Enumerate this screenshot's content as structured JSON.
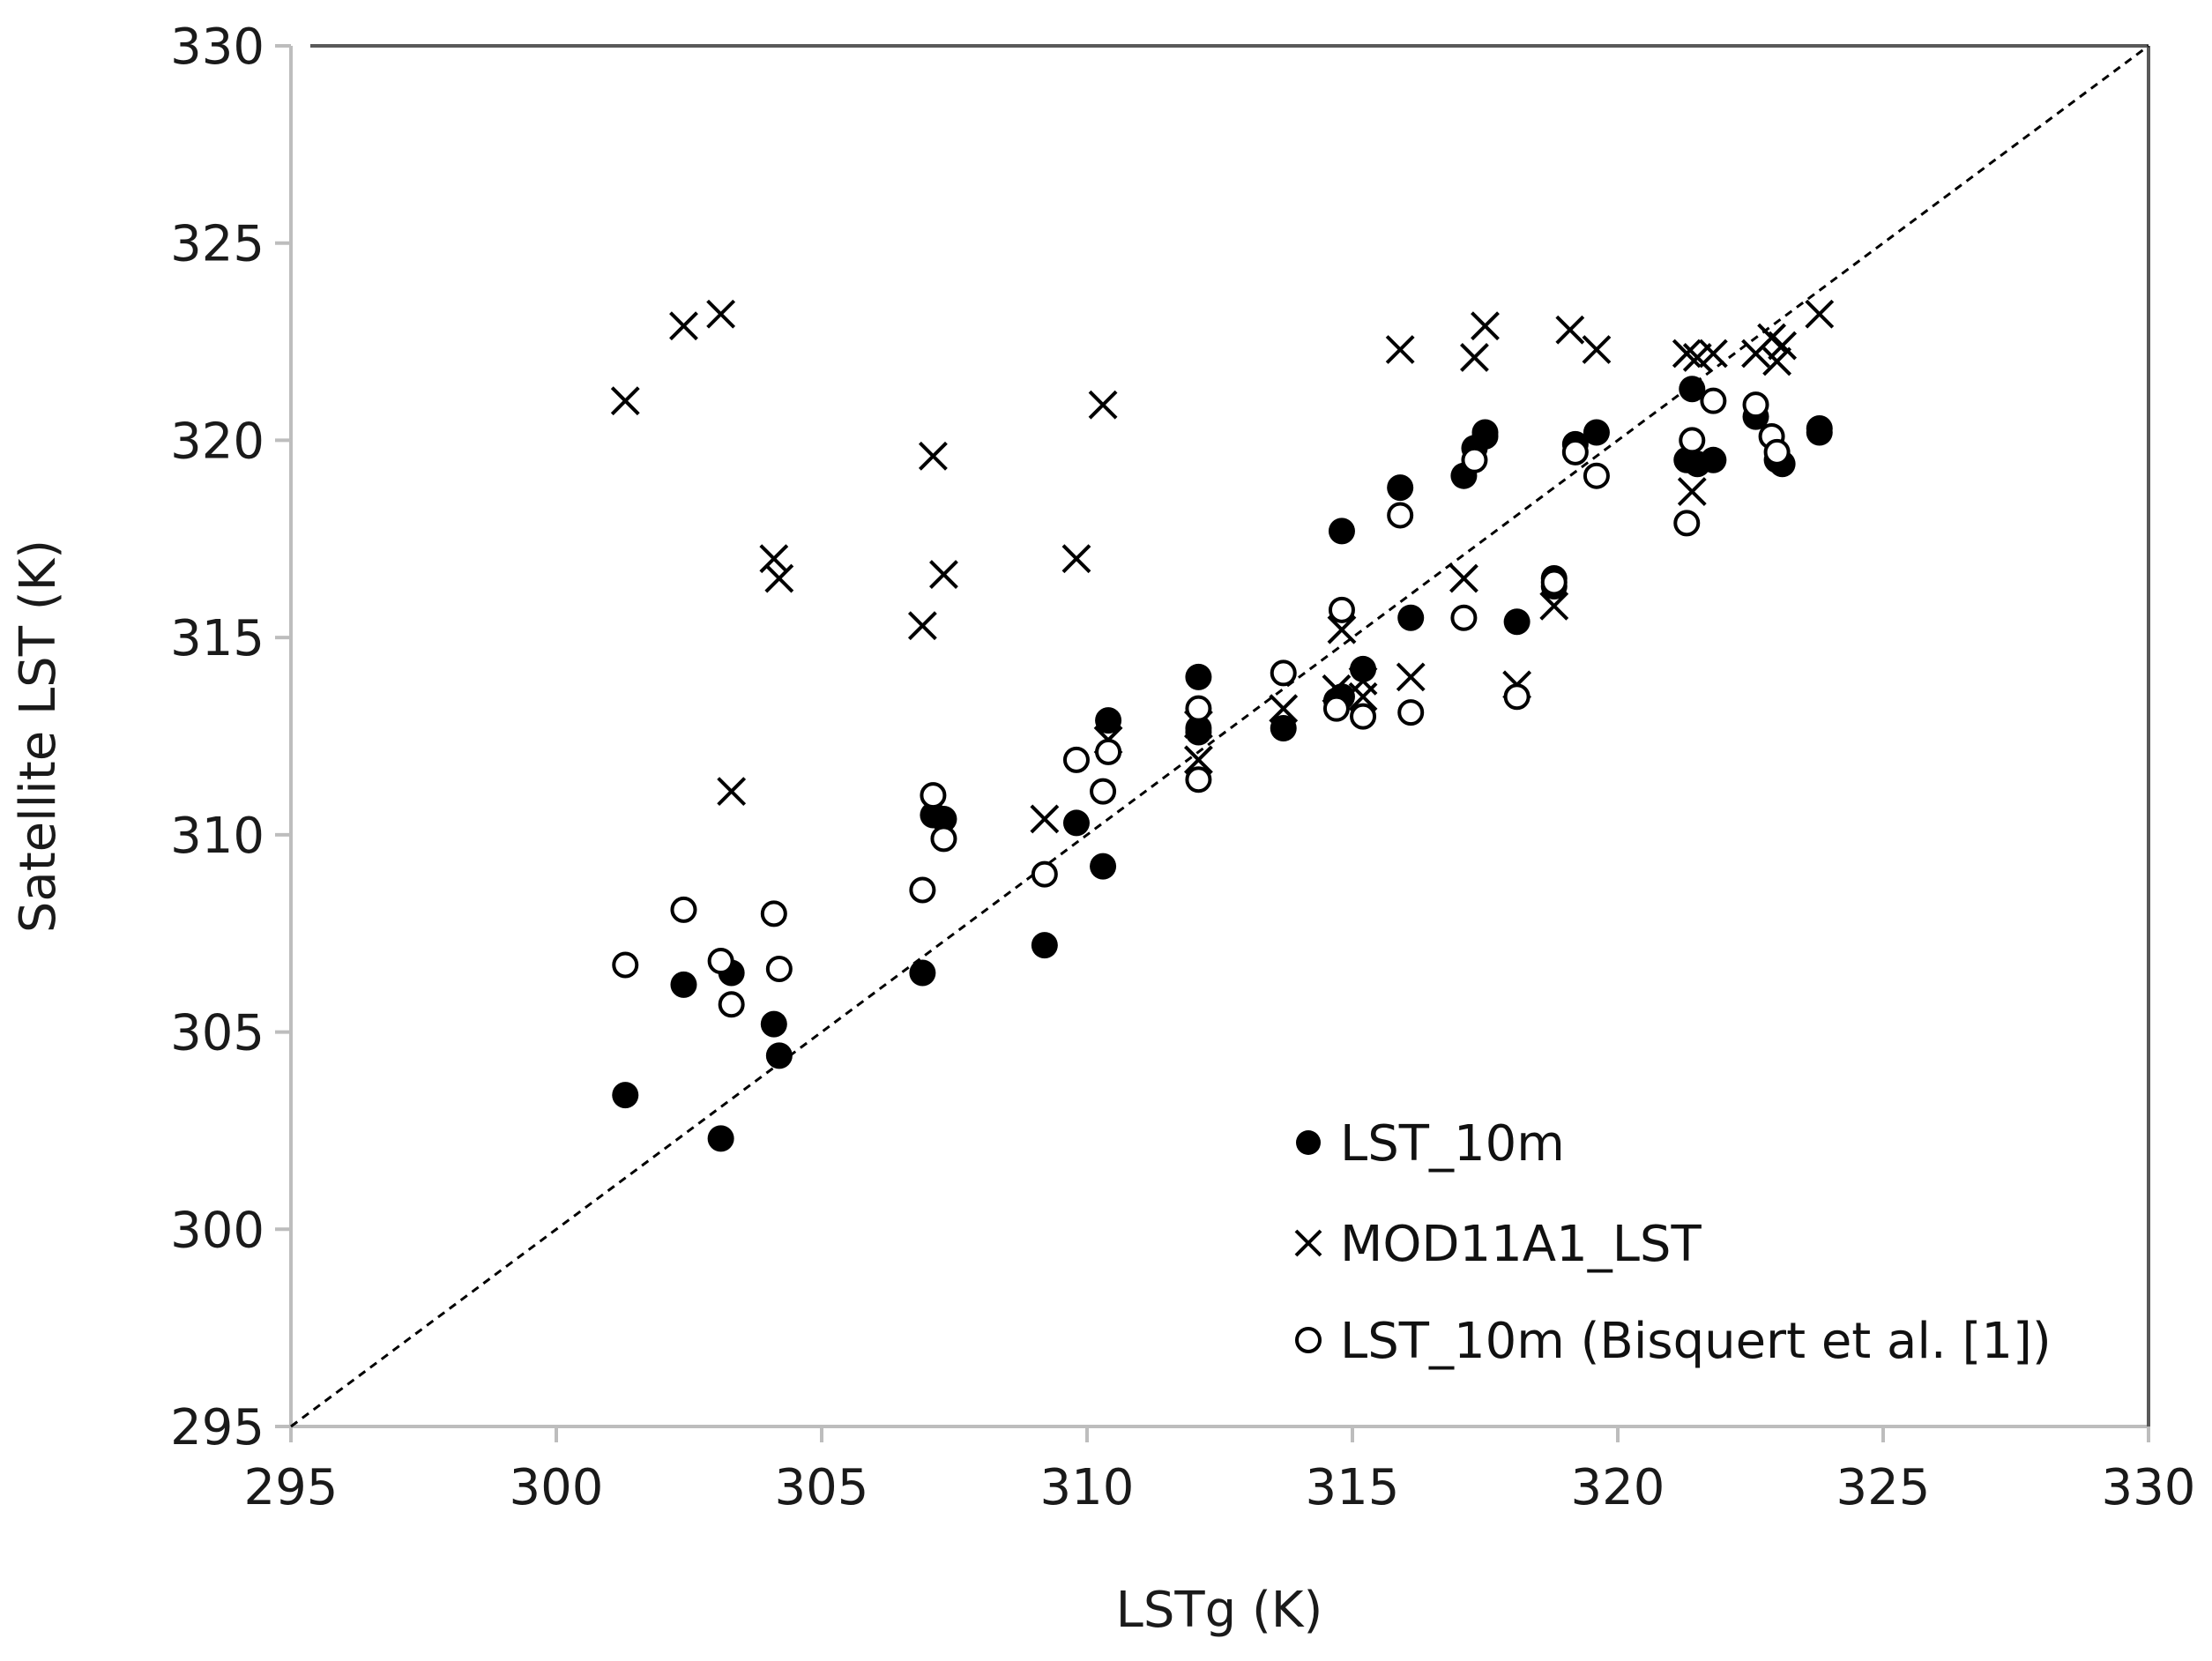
{
  "chart_data": {
    "type": "scatter",
    "title": "",
    "xlabel": "LSTg (K)",
    "ylabel": "Satellite LST (K)",
    "xlim": [
      295,
      330
    ],
    "ylim": [
      295,
      330
    ],
    "xticks": [
      295,
      300,
      305,
      310,
      315,
      320,
      325,
      330
    ],
    "yticks": [
      295,
      300,
      305,
      310,
      315,
      320,
      325,
      330
    ],
    "grid": false,
    "legend_position": "bottom-right",
    "reference_line": {
      "name": "1:1 line",
      "from": [
        295,
        295
      ],
      "to": [
        330,
        330
      ],
      "style": "dashed"
    },
    "series": [
      {
        "name": "LST_10m",
        "marker": "filled-circle",
        "points": [
          [
            301.3,
            303.4
          ],
          [
            302.4,
            306.2
          ],
          [
            303.3,
            306.5
          ],
          [
            303.1,
            302.3
          ],
          [
            304.1,
            305.2
          ],
          [
            304.2,
            304.4
          ],
          [
            306.9,
            306.5
          ],
          [
            307.1,
            310.5
          ],
          [
            307.3,
            310.4
          ],
          [
            309.2,
            307.2
          ],
          [
            309.8,
            310.3
          ],
          [
            310.4,
            312.9
          ],
          [
            310.3,
            309.2
          ],
          [
            312.1,
            314.0
          ],
          [
            312.1,
            312.7
          ],
          [
            312.1,
            312.6
          ],
          [
            313.7,
            312.7
          ],
          [
            314.7,
            313.4
          ],
          [
            314.8,
            313.5
          ],
          [
            314.8,
            317.7
          ],
          [
            315.2,
            314.2
          ],
          [
            315.9,
            318.8
          ],
          [
            316.1,
            315.5
          ],
          [
            317.1,
            319.1
          ],
          [
            317.3,
            319.8
          ],
          [
            317.5,
            320.1
          ],
          [
            317.5,
            320.2
          ],
          [
            318.1,
            315.4
          ],
          [
            318.8,
            316.5
          ],
          [
            318.8,
            316.3
          ],
          [
            319.2,
            319.9
          ],
          [
            319.6,
            320.2
          ],
          [
            321.3,
            319.5
          ],
          [
            321.4,
            321.3
          ],
          [
            321.5,
            319.4
          ],
          [
            321.8,
            319.5
          ],
          [
            322.6,
            320.6
          ],
          [
            323.0,
            319.5
          ],
          [
            323.1,
            319.4
          ],
          [
            323.8,
            320.3
          ],
          [
            323.8,
            320.2
          ]
        ]
      },
      {
        "name": "MOD11A1_LST",
        "marker": "cross",
        "points": [
          [
            301.3,
            321.0
          ],
          [
            302.4,
            322.9
          ],
          [
            303.1,
            323.2
          ],
          [
            303.3,
            311.1
          ],
          [
            304.1,
            317.0
          ],
          [
            304.2,
            316.5
          ],
          [
            306.9,
            315.3
          ],
          [
            307.1,
            319.6
          ],
          [
            307.3,
            316.6
          ],
          [
            309.2,
            310.4
          ],
          [
            309.8,
            317.0
          ],
          [
            310.3,
            320.9
          ],
          [
            310.4,
            312.4
          ],
          [
            312.1,
            312.8
          ],
          [
            312.1,
            311.9
          ],
          [
            313.7,
            313.2
          ],
          [
            314.7,
            313.7
          ],
          [
            314.8,
            315.2
          ],
          [
            315.2,
            313.9
          ],
          [
            315.2,
            313.5
          ],
          [
            315.9,
            322.3
          ],
          [
            316.1,
            314.0
          ],
          [
            317.1,
            316.5
          ],
          [
            317.3,
            322.1
          ],
          [
            317.5,
            322.9
          ],
          [
            318.1,
            313.8
          ],
          [
            318.8,
            315.8
          ],
          [
            319.1,
            322.8
          ],
          [
            319.6,
            322.3
          ],
          [
            321.3,
            322.2
          ],
          [
            321.4,
            318.7
          ],
          [
            321.5,
            322.1
          ],
          [
            321.8,
            322.2
          ],
          [
            322.6,
            322.2
          ],
          [
            322.9,
            322.6
          ],
          [
            323.0,
            322.0
          ],
          [
            323.1,
            322.4
          ],
          [
            323.8,
            323.2
          ]
        ]
      },
      {
        "name": "LST_10m (Bisquert et al. [1])",
        "marker": "open-circle",
        "points": [
          [
            301.3,
            306.7
          ],
          [
            302.4,
            308.1
          ],
          [
            303.1,
            306.8
          ],
          [
            303.3,
            305.7
          ],
          [
            304.1,
            308.0
          ],
          [
            304.2,
            306.6
          ],
          [
            306.9,
            308.6
          ],
          [
            307.1,
            311.0
          ],
          [
            307.3,
            309.9
          ],
          [
            309.2,
            309.0
          ],
          [
            309.8,
            311.9
          ],
          [
            310.3,
            311.1
          ],
          [
            310.4,
            312.1
          ],
          [
            312.1,
            313.2
          ],
          [
            312.1,
            311.4
          ],
          [
            313.7,
            314.1
          ],
          [
            314.7,
            313.2
          ],
          [
            314.8,
            315.7
          ],
          [
            315.2,
            313.0
          ],
          [
            315.9,
            318.1
          ],
          [
            316.1,
            313.1
          ],
          [
            317.1,
            315.5
          ],
          [
            317.3,
            319.5
          ],
          [
            318.1,
            313.5
          ],
          [
            318.8,
            316.4
          ],
          [
            319.2,
            319.7
          ],
          [
            319.6,
            319.1
          ],
          [
            321.3,
            317.9
          ],
          [
            321.4,
            320.0
          ],
          [
            321.8,
            321.0
          ],
          [
            322.6,
            320.9
          ],
          [
            322.9,
            320.1
          ],
          [
            323.0,
            319.7
          ]
        ]
      }
    ]
  }
}
